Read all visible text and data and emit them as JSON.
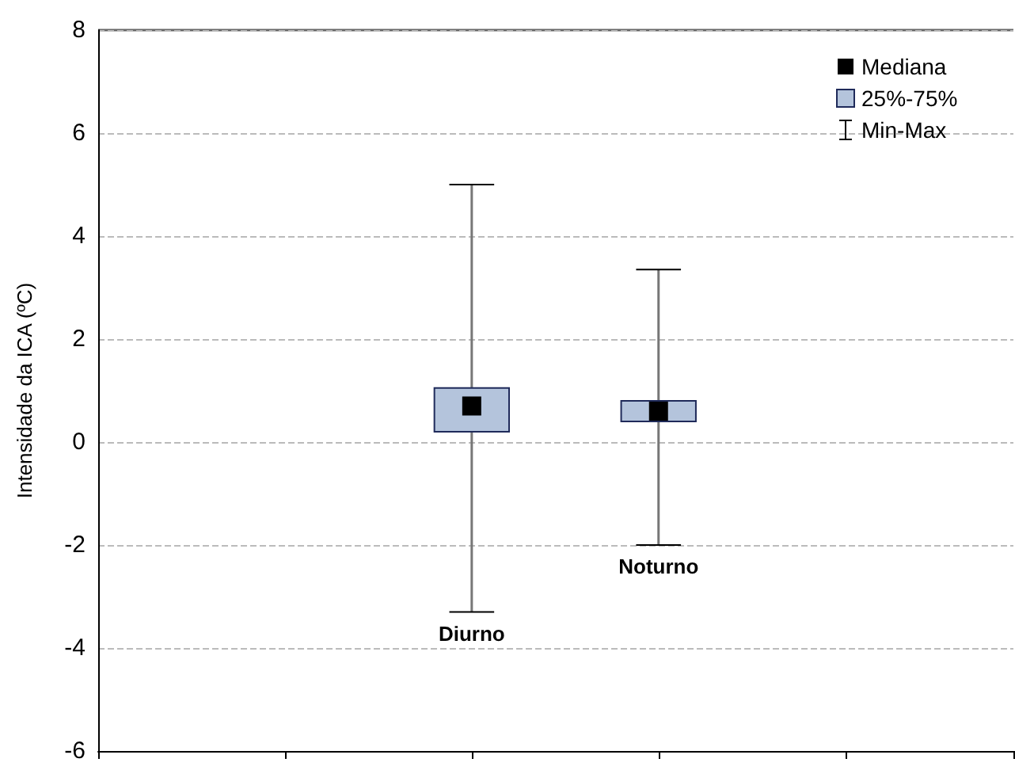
{
  "chart_data": {
    "type": "box",
    "ylabel": "Intensidade da ICA (ºC)",
    "categories": [
      "Diurno",
      "Noturno"
    ],
    "series": [
      {
        "name": "25%-75%",
        "color": "#b4c4dc",
        "boxes": [
          {
            "low": -3.3,
            "q1": 0.2,
            "median": 0.7,
            "q3": 1.05,
            "high": 5.0
          },
          {
            "low": -2.0,
            "q1": 0.4,
            "median": 0.6,
            "q3": 0.8,
            "high": 3.35
          }
        ]
      }
    ],
    "annotations": [
      "Mediana",
      "Min-Max"
    ],
    "ylim": [
      -6,
      8
    ],
    "yticks": [
      -6,
      -4,
      -2,
      0,
      2,
      4,
      6,
      8
    ],
    "grid": "y",
    "legend": "top right",
    "tick_labels": "y"
  }
}
